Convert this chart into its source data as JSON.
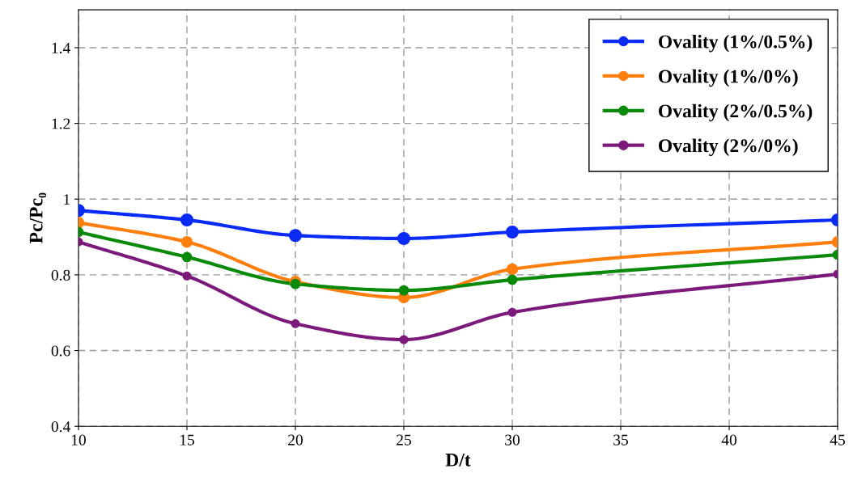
{
  "chart_data": {
    "type": "line",
    "xlabel": "D/t",
    "ylabel": "Pc/Pc₀",
    "x": [
      10,
      15,
      20,
      25,
      30,
      45
    ],
    "series": [
      {
        "name": "Ovality (1%/0.5%)",
        "color": "#0a2bf5",
        "values": [
          0.97,
          0.945,
          0.904,
          0.896,
          0.913,
          0.945
        ]
      },
      {
        "name": "Ovality (1%/0%)",
        "color": "#ff7f0e",
        "values": [
          0.938,
          0.887,
          0.782,
          0.74,
          0.815,
          0.887
        ]
      },
      {
        "name": "Ovality (2%/0.5%)",
        "color": "#0a8a0a",
        "values": [
          0.913,
          0.847,
          0.776,
          0.759,
          0.787,
          0.853
        ]
      },
      {
        "name": "Ovality (2%/0%)",
        "color": "#7b1a7b",
        "values": [
          0.887,
          0.797,
          0.671,
          0.629,
          0.701,
          0.802
        ]
      }
    ],
    "xlim": [
      10,
      45
    ],
    "xticks": [
      10,
      15,
      20,
      25,
      30,
      35,
      40,
      45
    ],
    "ylim": [
      0.4,
      1.5
    ],
    "yticks": [
      0.4,
      0.6,
      0.8,
      {
        "value": 1,
        "label": "1"
      },
      1.2,
      1.4
    ],
    "grid": true,
    "legend": "top right",
    "marker": "circle",
    "line_style": "solid"
  }
}
